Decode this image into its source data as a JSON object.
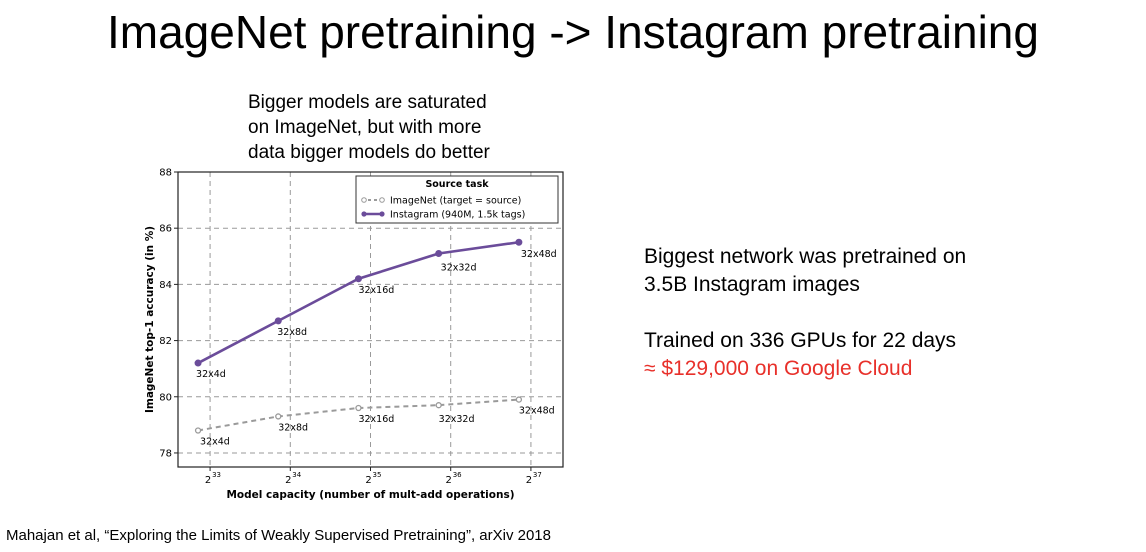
{
  "slide": {
    "title": "ImageNet pretraining -> Instagram pretraining",
    "caption_lines": [
      "Bigger models are saturated",
      "on ImageNet, but with more",
      "data bigger models do better"
    ],
    "right_lines": [
      "Biggest network was pretrained on",
      "3.5B Instagram images"
    ],
    "cost_line1": "Trained on 336 GPUs for 22 days",
    "cost_line2": "≈ $129,000 on Google Cloud",
    "citation": "Mahajan et al, “Exploring the Limits of Weakly Supervised Pretraining”, arXiv 2018"
  },
  "colors": {
    "accent_red": "#e8302a",
    "instagram": "#6b4c9a",
    "imagenet": "#9a9a9a"
  },
  "chart_data": {
    "type": "line",
    "xlabel": "Model capacity (number of mult-add operations)",
    "ylabel": "ImageNet top-1 accuracy (in %)",
    "x_scale": "log2",
    "x": [
      8589934592,
      17179869184,
      34359738368,
      68719476736,
      137438953472
    ],
    "x_tick_bases": [
      "2",
      "2",
      "2",
      "2",
      "2"
    ],
    "x_tick_exponents": [
      "33",
      "34",
      "35",
      "36",
      "37"
    ],
    "ylim": [
      77.5,
      88
    ],
    "y_ticks": [
      78,
      80,
      82,
      84,
      86,
      88
    ],
    "grid": true,
    "legend": {
      "title": "Source task",
      "placement": "top-right"
    },
    "series": [
      {
        "name": "ImageNet (target = source)",
        "style": "dashed",
        "x_log2": [
          32.85,
          33.85,
          34.85,
          35.85,
          36.85
        ],
        "values": [
          78.8,
          79.3,
          79.6,
          79.7,
          79.9
        ],
        "labels": [
          "32x4d",
          "32x8d",
          "32x16d",
          "32x32d",
          "32x48d"
        ]
      },
      {
        "name": "Instagram (940M, 1.5k tags)",
        "style": "solid",
        "x_log2": [
          32.85,
          33.85,
          34.85,
          35.85,
          36.85
        ],
        "values": [
          81.2,
          82.7,
          84.2,
          85.1,
          85.5
        ],
        "labels": [
          "32x4d",
          "32x8d",
          "32x16d",
          "32x32d",
          "32x48d"
        ]
      }
    ]
  }
}
